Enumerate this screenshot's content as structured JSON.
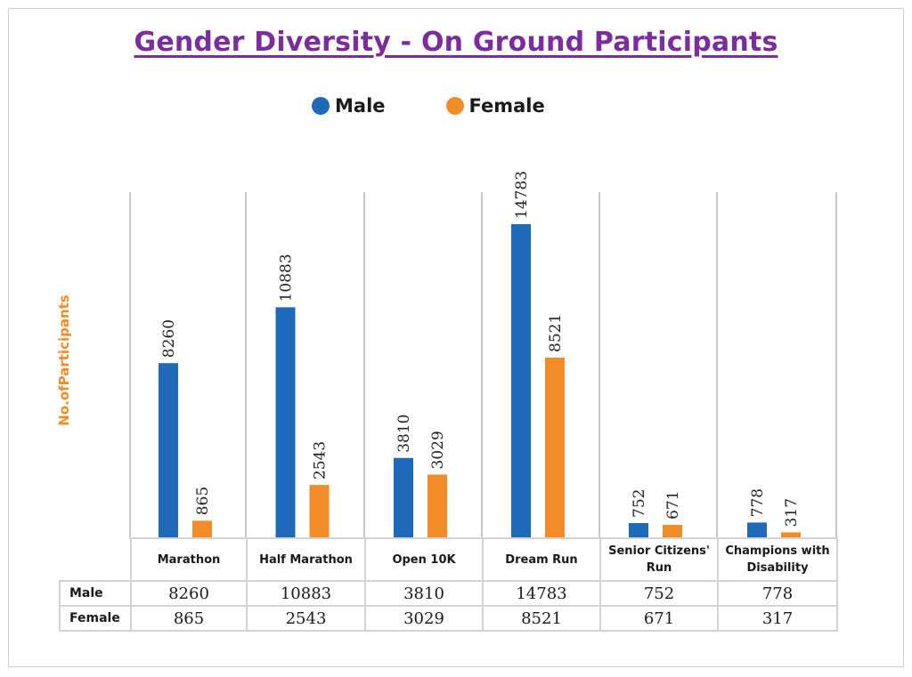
{
  "chart_data": {
    "type": "bar",
    "title": "Gender Diversity - On Ground Participants",
    "ylabel": "No.ofParticipants",
    "xlabel": "",
    "categories": [
      "Marathon",
      "Half Marathon",
      "Open 10K",
      "Dream Run",
      "Senior Citizens' Run",
      "Champions with Disability"
    ],
    "series": [
      {
        "name": "Male",
        "color": "#1e6ab8",
        "values": [
          8260,
          10883,
          3810,
          14783,
          752,
          778
        ]
      },
      {
        "name": "Female",
        "color": "#f28c28",
        "values": [
          865,
          2543,
          3029,
          8521,
          671,
          317
        ]
      }
    ],
    "ylim": [
      0,
      16500
    ],
    "legend_position": "top-center",
    "data_labels": true,
    "grid": "vertical category separators",
    "data_table": true
  },
  "table": {
    "row_labels": [
      "Male",
      "Female"
    ]
  },
  "colors": {
    "title": "#7b2c9e",
    "ylabel": "#f28c28",
    "male": "#1e6ab8",
    "female": "#f28c28"
  }
}
